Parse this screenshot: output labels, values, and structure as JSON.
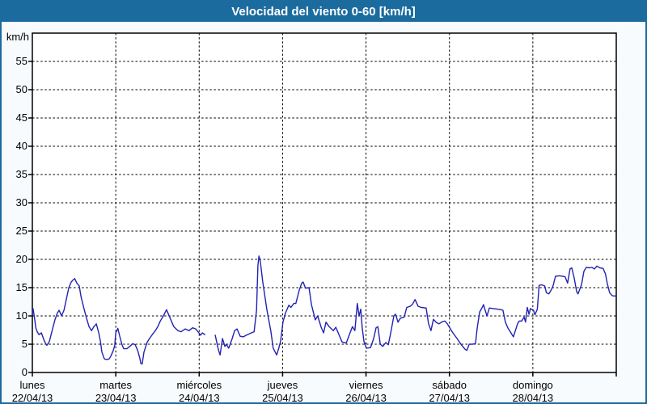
{
  "window": {
    "title": "Velocidad del viento 0-60 [km/h]"
  },
  "colors": {
    "titlebar_bg": "#1b6b9e",
    "frame_border": "#1b6b9e",
    "page_bg": "#f8fbfd",
    "plot_bg": "#ffffff",
    "line": "#2222b2",
    "grid": "#000000",
    "text": "#000000"
  },
  "chart_data": {
    "type": "line",
    "title": "Velocidad del viento 0-60 [km/h]",
    "ylabel": "km/h",
    "xlabel": "",
    "ylim": [
      0,
      60
    ],
    "y_ticks": [
      0,
      5,
      10,
      15,
      20,
      25,
      30,
      35,
      40,
      45,
      50,
      55
    ],
    "grid": "dashed, horizontal at every 5 km/h and vertical at every day boundary",
    "legend": "none",
    "x_unit": "hours since lunes 22/04/13 00:00 (7 days shown, 0-168 h)",
    "x_days": [
      {
        "name": "lunes",
        "date": "22/04/13"
      },
      {
        "name": "martes",
        "date": "23/04/13"
      },
      {
        "name": "miércoles",
        "date": "24/04/13"
      },
      {
        "name": "jueves",
        "date": "25/04/13"
      },
      {
        "name": "viernes",
        "date": "26/04/13"
      },
      {
        "name": "sábado",
        "date": "27/04/13"
      },
      {
        "name": "domingo",
        "date": "28/04/13"
      }
    ],
    "series": [
      {
        "name": "velocidad del viento",
        "color": "#2222b2",
        "note": "null value = data gap (miércoles early morning)",
        "points": [
          [
            0,
            10.5
          ],
          [
            0.2,
            11.3
          ],
          [
            0.7,
            9.3
          ],
          [
            1,
            7.9
          ],
          [
            1.4,
            7.2
          ],
          [
            1.9,
            6.7
          ],
          [
            2.6,
            7
          ],
          [
            3.3,
            5.8
          ],
          [
            3.9,
            5
          ],
          [
            4.2,
            4.8
          ],
          [
            4.9,
            5.5
          ],
          [
            5.6,
            7.2
          ],
          [
            6.5,
            9.3
          ],
          [
            7.2,
            10.5
          ],
          [
            7.7,
            11
          ],
          [
            8.4,
            10
          ],
          [
            9.1,
            11
          ],
          [
            9.8,
            13
          ],
          [
            10.5,
            15
          ],
          [
            11.2,
            16
          ],
          [
            11.6,
            16.3
          ],
          [
            12.2,
            16.6
          ],
          [
            12.8,
            15.8
          ],
          [
            13.5,
            15.3
          ],
          [
            14,
            13.4
          ],
          [
            14.9,
            11.2
          ],
          [
            15.6,
            9.6
          ],
          [
            16.3,
            8.1
          ],
          [
            17,
            7.4
          ],
          [
            17.7,
            8.1
          ],
          [
            18.4,
            8.6
          ],
          [
            19.1,
            7
          ],
          [
            19.6,
            5.5
          ],
          [
            20,
            3.6
          ],
          [
            20.7,
            2.4
          ],
          [
            21.4,
            2.3
          ],
          [
            22.1,
            2.4
          ],
          [
            22.6,
            2.9
          ],
          [
            23.3,
            3.9
          ],
          [
            23.7,
            4.8
          ],
          [
            24,
            7
          ],
          [
            24.6,
            7.8
          ],
          [
            25.1,
            6.5
          ],
          [
            25.8,
            4.9
          ],
          [
            26.3,
            4.2
          ],
          [
            27.2,
            4.2
          ],
          [
            28,
            4.6
          ],
          [
            28.9,
            5.1
          ],
          [
            29.6,
            4.9
          ],
          [
            30.3,
            3.9
          ],
          [
            30.9,
            2.6
          ],
          [
            31.2,
            1.6
          ],
          [
            31.6,
            1.5
          ],
          [
            32.1,
            3.6
          ],
          [
            33,
            5.3
          ],
          [
            33.7,
            6
          ],
          [
            34.5,
            6.7
          ],
          [
            35.4,
            7.4
          ],
          [
            36.1,
            8.1
          ],
          [
            36.8,
            9.1
          ],
          [
            37.7,
            10
          ],
          [
            38.6,
            11.1
          ],
          [
            40,
            9.1
          ],
          [
            40.7,
            8.1
          ],
          [
            41.9,
            7.4
          ],
          [
            42.8,
            7.2
          ],
          [
            44,
            7.7
          ],
          [
            45.1,
            7.4
          ],
          [
            46.1,
            7.9
          ],
          [
            47,
            7.7
          ],
          [
            47.9,
            7
          ],
          [
            48.4,
            6.6
          ],
          [
            48.9,
            7
          ],
          [
            49.6,
            6.7
          ],
          [
            51,
            null
          ],
          [
            52.6,
            6.6
          ],
          [
            53.5,
            4.1
          ],
          [
            54,
            3.1
          ],
          [
            54.7,
            6
          ],
          [
            55.4,
            4.6
          ],
          [
            55.8,
            5
          ],
          [
            56.5,
            4.3
          ],
          [
            57.5,
            6
          ],
          [
            58.2,
            7.4
          ],
          [
            58.9,
            7.7
          ],
          [
            59.8,
            6.4
          ],
          [
            60.7,
            6.3
          ],
          [
            61.6,
            6.6
          ],
          [
            63,
            7
          ],
          [
            63.8,
            7.2
          ],
          [
            64.5,
            11
          ],
          [
            64.9,
            18.9
          ],
          [
            65.2,
            20.6
          ],
          [
            65.6,
            19.6
          ],
          [
            66.3,
            16
          ],
          [
            67.5,
            11
          ],
          [
            68.6,
            7.4
          ],
          [
            69.3,
            4.3
          ],
          [
            70.3,
            3.1
          ],
          [
            70.9,
            4.3
          ],
          [
            71.4,
            5.5
          ],
          [
            72.1,
            8.9
          ],
          [
            72.8,
            10.5
          ],
          [
            73.8,
            11.9
          ],
          [
            74.4,
            11.5
          ],
          [
            75.2,
            12.2
          ],
          [
            75.8,
            12.2
          ],
          [
            76.8,
            14.6
          ],
          [
            77.5,
            15.8
          ],
          [
            77.9,
            16
          ],
          [
            78.6,
            14.9
          ],
          [
            79.6,
            15
          ],
          [
            80.3,
            12
          ],
          [
            81,
            10.3
          ],
          [
            81.4,
            9.3
          ],
          [
            82.1,
            10
          ],
          [
            83.1,
            8
          ],
          [
            83.8,
            7
          ],
          [
            84.5,
            8.9
          ],
          [
            85.4,
            8.1
          ],
          [
            86.6,
            7.4
          ],
          [
            87.3,
            8
          ],
          [
            88.2,
            6.7
          ],
          [
            89.1,
            5.4
          ],
          [
            90.3,
            5.2
          ],
          [
            91.4,
            7
          ],
          [
            92.1,
            8.1
          ],
          [
            92.8,
            7.4
          ],
          [
            93.5,
            12.2
          ],
          [
            94,
            10
          ],
          [
            94.5,
            11.2
          ],
          [
            94.9,
            8
          ],
          [
            95.4,
            5.5
          ],
          [
            96.1,
            4.3
          ],
          [
            97.3,
            4.4
          ],
          [
            98.2,
            6
          ],
          [
            98.9,
            7.9
          ],
          [
            99.4,
            8.1
          ],
          [
            100.1,
            5
          ],
          [
            100.8,
            4.6
          ],
          [
            101.7,
            5.3
          ],
          [
            102.4,
            4.9
          ],
          [
            103.1,
            7
          ],
          [
            104,
            10
          ],
          [
            104.5,
            10.3
          ],
          [
            105.2,
            8.9
          ],
          [
            105.9,
            9.6
          ],
          [
            107,
            9.8
          ],
          [
            107.7,
            11.5
          ],
          [
            108.7,
            11.7
          ],
          [
            109.4,
            12.1
          ],
          [
            110.1,
            12.9
          ],
          [
            111,
            11.7
          ],
          [
            111.9,
            11.5
          ],
          [
            113.3,
            11.4
          ],
          [
            114,
            8.6
          ],
          [
            114.7,
            7.4
          ],
          [
            115.4,
            9.4
          ],
          [
            116.3,
            8.8
          ],
          [
            117,
            8.6
          ],
          [
            118,
            9
          ],
          [
            118.7,
            9.1
          ],
          [
            119.4,
            8.6
          ],
          [
            120.3,
            7.7
          ],
          [
            121,
            7
          ],
          [
            122.2,
            6
          ],
          [
            123.3,
            5
          ],
          [
            124.5,
            4.1
          ],
          [
            125,
            3.9
          ],
          [
            125.7,
            5
          ],
          [
            126.6,
            5
          ],
          [
            127.5,
            5.1
          ],
          [
            128,
            7.9
          ],
          [
            128.7,
            10.7
          ],
          [
            129.6,
            11.7
          ],
          [
            129.8,
            12
          ],
          [
            130.8,
            10
          ],
          [
            131.5,
            11.4
          ],
          [
            132.6,
            11.3
          ],
          [
            133.8,
            11.2
          ],
          [
            134.9,
            11.1
          ],
          [
            135.4,
            11
          ],
          [
            136.1,
            8.9
          ],
          [
            136.8,
            7.9
          ],
          [
            137.7,
            7
          ],
          [
            138.4,
            6.3
          ],
          [
            139.6,
            8.6
          ],
          [
            140.1,
            9.1
          ],
          [
            140.8,
            9.1
          ],
          [
            141.5,
            9.8
          ],
          [
            141.9,
            8.9
          ],
          [
            142.4,
            11.5
          ],
          [
            142.9,
            10.3
          ],
          [
            143.3,
            11.3
          ],
          [
            144.2,
            11
          ],
          [
            144.6,
            10.2
          ],
          [
            145.3,
            11.2
          ],
          [
            145.8,
            15.4
          ],
          [
            146.5,
            15.5
          ],
          [
            147.4,
            15.3
          ],
          [
            147.9,
            14.1
          ],
          [
            148.6,
            13.9
          ],
          [
            149.3,
            14.6
          ],
          [
            149.8,
            15.3
          ],
          [
            150.5,
            17
          ],
          [
            151.6,
            17.1
          ],
          [
            152.8,
            17
          ],
          [
            153.3,
            16.9
          ],
          [
            154,
            15.8
          ],
          [
            154.7,
            18.3
          ],
          [
            155.2,
            18.5
          ],
          [
            155.9,
            16.7
          ],
          [
            156.6,
            14.3
          ],
          [
            157,
            13.9
          ],
          [
            158,
            15.5
          ],
          [
            158.7,
            17.9
          ],
          [
            159.4,
            18.6
          ],
          [
            160.3,
            18.5
          ],
          [
            161,
            18.6
          ],
          [
            161.7,
            18.3
          ],
          [
            162.4,
            18.8
          ],
          [
            163.3,
            18.5
          ],
          [
            164.2,
            18.4
          ],
          [
            164.9,
            17.4
          ],
          [
            165.4,
            15.8
          ],
          [
            166.1,
            14.1
          ],
          [
            166.8,
            13.6
          ],
          [
            167.5,
            13.5
          ],
          [
            167.9,
            13.6
          ]
        ]
      }
    ]
  }
}
